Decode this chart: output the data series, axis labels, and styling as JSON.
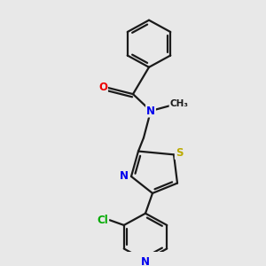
{
  "bg_color": "#e8e8e8",
  "bond_color": "#1a1a1a",
  "atom_colors": {
    "N": "#0000ee",
    "O": "#ee0000",
    "S": "#bbaa00",
    "Cl": "#00aa00",
    "C": "#1a1a1a"
  },
  "font_size_atom": 8.5,
  "bond_width": 1.6
}
